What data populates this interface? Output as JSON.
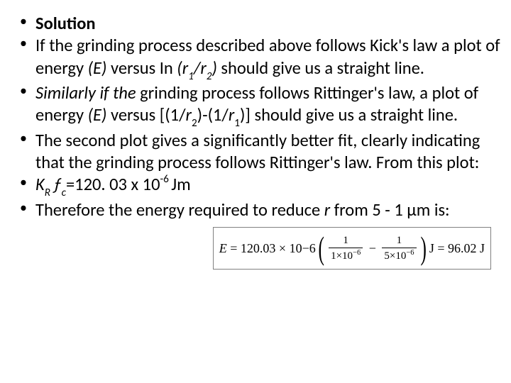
{
  "bullets": {
    "b1_bold": "Solution",
    "b2_pre": "If the grinding process described above follows Kick's law a plot of energy ",
    "b2_e": "(E)",
    "b2_mid1": " versus In ",
    "b2_r": "(r",
    "b2_sub1": "1",
    "b2_slash": "/r",
    "b2_sub2": "2",
    "b2_close": ")",
    "b2_end": " should give us a straight line.",
    "b3_pre_i": "Similarly if the ",
    "b3_pre": "grinding process follows Rittinger's law, a plot of energy ",
    "b3_e": "(E)",
    "b3_mid1": " versus [(1/",
    "b3_r2": "r",
    "b3_sub2": "2",
    "b3_mid2": ")-(1/",
    "b3_r1": "r",
    "b3_sub1": "1",
    "b3_close": ")] should give us a straight line.",
    "b4": "The second plot gives a significantly better fit, clearly indicating that the grinding process follows Rittinger's law. From this plot:",
    "b5_k": "K",
    "b5_r": "R ",
    "b5_f": "ƒ",
    "b5_c": "c",
    "b5_eq": "=120. 03 x 10",
    "b5_sup": "-6 ",
    "b5_unit": "Jm",
    "b6_pre": "Therefore the energy required to reduce ",
    "b6_r": "r",
    "b6_end": " from 5 - 1 μm is:"
  },
  "equation": {
    "lhs": "E",
    "eq": " = ",
    "coef": "120.03",
    "times": "×",
    "ten": "10",
    "exp": "−6",
    "frac1_num": "1",
    "frac1_den_a": "1×10",
    "frac1_den_exp": "−6",
    "minus": "−",
    "frac2_num": "1",
    "frac2_den_a": "5×10",
    "frac2_den_exp": "−6",
    "unit": "J",
    "result": " = 96.02 J"
  },
  "style": {
    "font_size_body": 24.5,
    "font_size_eq": 18,
    "color_text": "#000000",
    "color_bg": "#ffffff",
    "color_border": "#808080"
  }
}
